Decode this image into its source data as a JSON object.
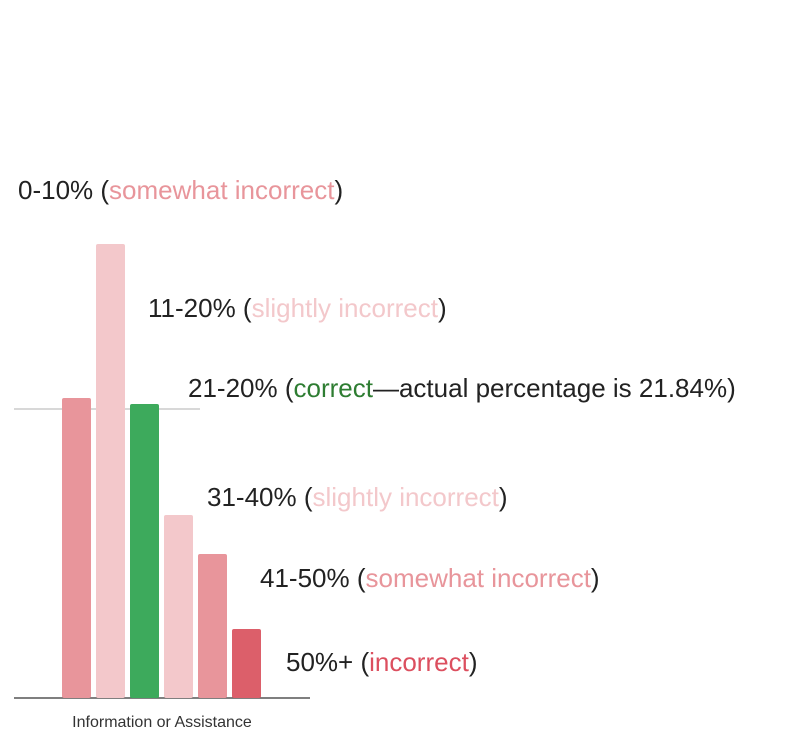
{
  "chart_data": {
    "type": "bar",
    "x_label": "Information or Assistance",
    "categories": [
      null,
      null,
      null,
      null,
      null,
      null
    ],
    "values": [
      300,
      454,
      294,
      183,
      144,
      69
    ],
    "colors": [
      "#e8959b",
      "#f3c8cb",
      "#3daa5c",
      "#f3c8cb",
      "#e8959b",
      "#dc5f6a"
    ],
    "ylim": [
      0,
      500
    ],
    "reference_value": 289,
    "annotations": [
      {
        "parts": [
          {
            "text": "0-10% ("
          },
          {
            "text": "somewhat incorrect",
            "color": "#e8959b"
          },
          {
            "text": ")"
          }
        ]
      },
      {
        "parts": [
          {
            "text": "11-20% ("
          },
          {
            "text": "slightly incorrect",
            "color": "#f3c8cb"
          },
          {
            "text": ")"
          }
        ]
      },
      {
        "parts": [
          {
            "text": "21-20% ("
          },
          {
            "text": "correct",
            "color": "#2e7d32"
          },
          {
            "text": "—actual percentage is 21.84%)"
          }
        ]
      },
      {
        "parts": [
          {
            "text": "31-40% ("
          },
          {
            "text": "slightly incorrect",
            "color": "#f3c8cb"
          },
          {
            "text": ")"
          }
        ]
      },
      {
        "parts": [
          {
            "text": "41-50% ("
          },
          {
            "text": "somewhat incorrect",
            "color": "#e8959b"
          },
          {
            "text": ")"
          }
        ]
      },
      {
        "parts": [
          {
            "text": "50%+ ("
          },
          {
            "text": "incorrect",
            "color": "#dc4f5f"
          },
          {
            "text": ")"
          }
        ]
      }
    ]
  }
}
